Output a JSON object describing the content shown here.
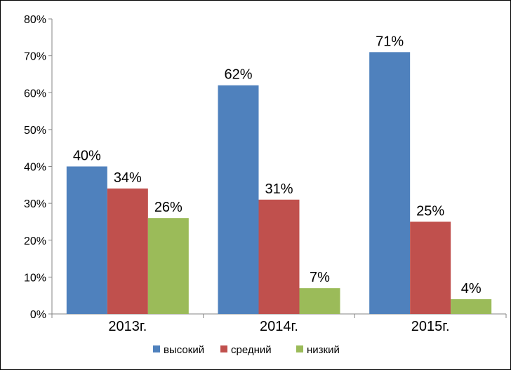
{
  "chart_data": {
    "type": "bar",
    "categories": [
      "2013г.",
      "2014г.",
      "2015г."
    ],
    "series": [
      {
        "name": "высокий",
        "values": [
          40,
          62,
          71
        ],
        "labels": [
          "40%",
          "62%",
          "71%"
        ],
        "color": "#4f81bd"
      },
      {
        "name": "средний",
        "values": [
          34,
          31,
          25
        ],
        "labels": [
          "34%",
          "31%",
          "25%"
        ],
        "color": "#c0504d"
      },
      {
        "name": "низкий",
        "values": [
          26,
          7,
          4
        ],
        "labels": [
          "26%",
          "7%",
          "4%"
        ],
        "color": "#9bbb59"
      }
    ],
    "ylim": [
      0,
      80
    ],
    "yticks": [
      "0%",
      "10%",
      "20%",
      "30%",
      "40%",
      "50%",
      "60%",
      "70%",
      "80%"
    ],
    "grid": false,
    "legend": "bottom",
    "axis_color": "#868686"
  }
}
